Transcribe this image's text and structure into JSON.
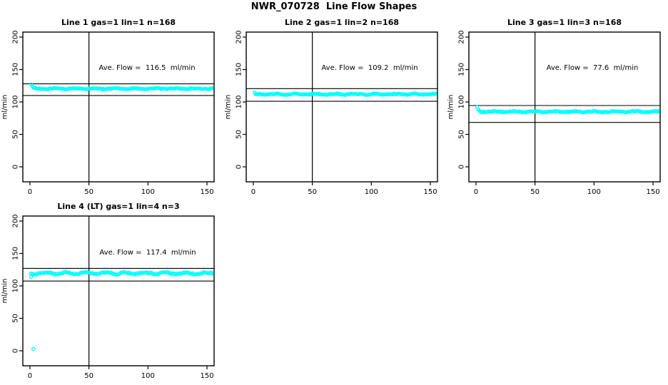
{
  "main": {
    "title": "NWR_070728  Line Flow Shapes"
  },
  "axes": {
    "ylabel": "ml/min",
    "y_ticks": [
      0,
      50,
      100,
      150,
      200
    ],
    "x_ticks": [
      0,
      50,
      100,
      150
    ],
    "x_ref_line": 50
  },
  "marker": {
    "shape": "open-circle",
    "color": "#00FFFF"
  },
  "chart_data": [
    {
      "type": "scatter",
      "title": "Line 1 gas=1 lin=1 n=168",
      "ave_flow_label": "Ave. Flow =  116.5  ml/min",
      "ave_flow": 116.5,
      "n": 168,
      "ylabel": "ml/min",
      "xlim": [
        0,
        150
      ],
      "ylim": [
        0,
        200
      ],
      "x_ticks": [
        0,
        50,
        100,
        150
      ],
      "y_ticks": [
        0,
        50,
        100,
        150,
        200
      ],
      "flow_level": 120.5,
      "upper_ref_line": 128,
      "lower_ref_line": 110,
      "x_ref_line": 50,
      "x_range_points": [
        1,
        168
      ],
      "start_points": [
        [
          1,
          127
        ],
        [
          2,
          124
        ],
        [
          3,
          122
        ]
      ],
      "extra_points": []
    },
    {
      "type": "scatter",
      "title": "Line 2 gas=1 lin=2 n=168",
      "ave_flow_label": "Ave. Flow =  109.2  ml/min",
      "ave_flow": 109.2,
      "n": 168,
      "ylabel": "ml/min",
      "xlim": [
        0,
        150
      ],
      "ylim": [
        0,
        200
      ],
      "x_ticks": [
        0,
        50,
        100,
        150
      ],
      "y_ticks": [
        0,
        50,
        100,
        150,
        200
      ],
      "flow_level": 112,
      "upper_ref_line": 120.5,
      "lower_ref_line": 101,
      "x_ref_line": 50,
      "x_range_points": [
        1,
        168
      ],
      "start_points": [
        [
          1,
          114.5
        ]
      ],
      "extra_points": []
    },
    {
      "type": "scatter",
      "title": "Line 3 gas=1 lin=3 n=168",
      "ave_flow_label": "Ave. Flow =  77.6  ml/min",
      "ave_flow": 77.6,
      "n": 168,
      "ylabel": "ml/min",
      "xlim": [
        0,
        150
      ],
      "ylim": [
        0,
        200
      ],
      "x_ticks": [
        0,
        50,
        100,
        150
      ],
      "y_ticks": [
        0,
        50,
        100,
        150,
        200
      ],
      "flow_level": 85,
      "upper_ref_line": 94.5,
      "lower_ref_line": 68.5,
      "x_ref_line": 50,
      "x_range_points": [
        1,
        168
      ],
      "start_points": [
        [
          1,
          92
        ],
        [
          2,
          88.5
        ],
        [
          3,
          86.5
        ]
      ],
      "extra_points": []
    },
    {
      "type": "scatter",
      "title": "Line 4 (LT) gas=1 lin=4 n=3",
      "ave_flow_label": "Ave. Flow =  117.4  ml/min",
      "ave_flow": 117.4,
      "n": 3,
      "ylabel": "ml/min",
      "xlim": [
        0,
        150
      ],
      "ylim": [
        0,
        200
      ],
      "x_ticks": [
        0,
        50,
        100,
        150
      ],
      "y_ticks": [
        0,
        50,
        100,
        150,
        200
      ],
      "flow_level": 119.5,
      "upper_ref_line": 127,
      "lower_ref_line": 107.5,
      "x_ref_line": 50,
      "x_range_points": [
        1,
        168
      ],
      "start_points": [],
      "extra_points": [
        [
          1,
          114
        ],
        [
          3,
          3
        ]
      ]
    }
  ]
}
